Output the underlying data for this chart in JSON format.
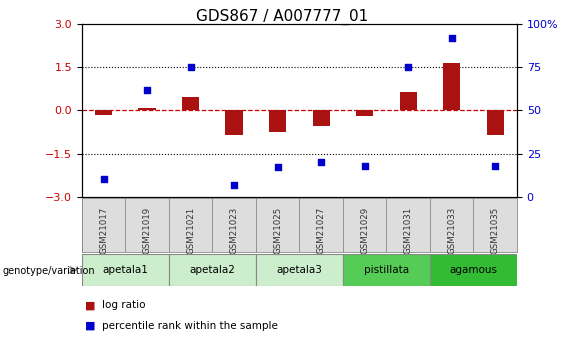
{
  "title": "GDS867 / A007777_01",
  "samples": [
    "GSM21017",
    "GSM21019",
    "GSM21021",
    "GSM21023",
    "GSM21025",
    "GSM21027",
    "GSM21029",
    "GSM21031",
    "GSM21033",
    "GSM21035"
  ],
  "log_ratio": [
    -0.15,
    0.08,
    0.45,
    -0.85,
    -0.75,
    -0.55,
    -0.2,
    0.65,
    1.65,
    -0.85
  ],
  "percentile_rank": [
    10,
    62,
    75,
    7,
    17,
    20,
    18,
    75,
    92,
    18
  ],
  "groups": [
    {
      "name": "apetala1",
      "start": 0,
      "end": 2,
      "color": "#cceecc"
    },
    {
      "name": "apetala2",
      "start": 2,
      "end": 4,
      "color": "#cceecc"
    },
    {
      "name": "apetala3",
      "start": 4,
      "end": 6,
      "color": "#cceecc"
    },
    {
      "name": "pistillata",
      "start": 6,
      "end": 8,
      "color": "#55cc55"
    },
    {
      "name": "agamous",
      "start": 8,
      "end": 10,
      "color": "#33bb33"
    }
  ],
  "ylim_left": [
    -3,
    3
  ],
  "ylim_right": [
    0,
    100
  ],
  "bar_color": "#aa1111",
  "dot_color": "#0000cc",
  "hline_color": "#cc0000",
  "dotline_color": "#000000",
  "background_color": "#ffffff",
  "title_fontsize": 11,
  "tick_fontsize": 8
}
